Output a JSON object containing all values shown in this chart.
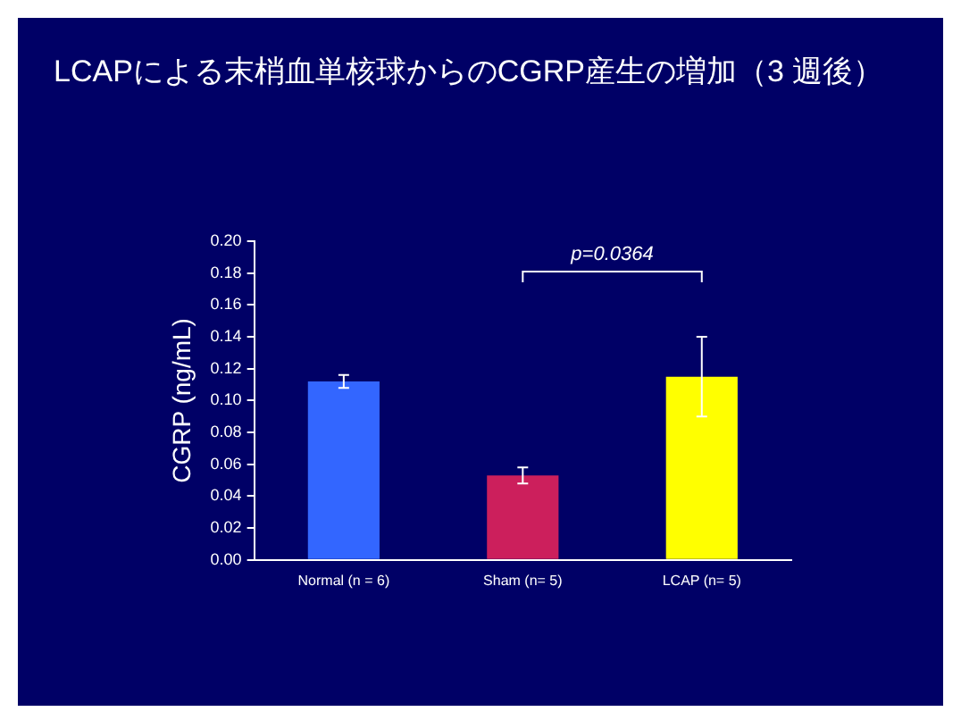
{
  "chart_data": {
    "type": "bar",
    "title": "LCAPによる末梢血単核球からのCGRP産生の増加（3 週後）",
    "ylabel": "CGRP (ng/mL)",
    "categories": [
      "Normal (n = 6)",
      "Sham (n= 5)",
      "LCAP (n= 5)"
    ],
    "values": [
      0.112,
      0.053,
      0.115
    ],
    "errors": [
      0.004,
      0.005,
      0.025
    ],
    "colors": [
      "#3366ff",
      "#cc1f5c",
      "#ffff00"
    ],
    "ylim": [
      0,
      0.2
    ],
    "yticks": [
      {
        "value": 0,
        "label": "0.00"
      },
      {
        "value": 0.02,
        "label": "0.02"
      },
      {
        "value": 0.04,
        "label": "0.04"
      },
      {
        "value": 0.06,
        "label": "0.06"
      },
      {
        "value": 0.08,
        "label": "0.08"
      },
      {
        "value": 0.1,
        "label": "0.10"
      },
      {
        "value": 0.12,
        "label": "0.12"
      },
      {
        "value": 0.14,
        "label": "0.14"
      },
      {
        "value": 0.16,
        "label": "0.16"
      },
      {
        "value": 0.18,
        "label": "0.18"
      },
      {
        "value": 0.2,
        "label": "0.20"
      }
    ],
    "grid": false,
    "legend": false,
    "annotations": [
      "p=0.0364"
    ]
  }
}
